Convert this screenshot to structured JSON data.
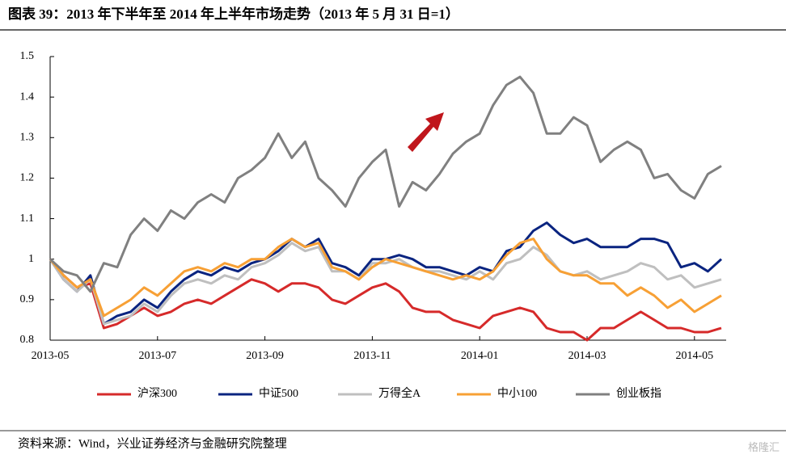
{
  "title": "图表 39：2013 年下半年至 2014 年上半年市场走势（2013 年 5 月 31 日=1）",
  "source": "资料来源：Wind，兴业证券经济与金融研究院整理",
  "watermark": "格隆汇",
  "chart_data": {
    "type": "line",
    "categories": [
      "2013-05",
      null,
      null,
      null,
      null,
      null,
      null,
      null,
      "2013-07",
      null,
      null,
      null,
      null,
      null,
      null,
      null,
      "2013-09",
      null,
      null,
      null,
      null,
      null,
      null,
      null,
      "2013-11",
      null,
      null,
      null,
      null,
      null,
      null,
      null,
      "2014-01",
      null,
      null,
      null,
      null,
      null,
      null,
      null,
      "2014-03",
      null,
      null,
      null,
      null,
      null,
      null,
      null,
      "2014-05",
      null,
      null
    ],
    "ylim": [
      0.8,
      1.5
    ],
    "yticks": [
      0.8,
      0.9,
      1,
      1.1,
      1.2,
      1.3,
      1.4,
      1.5
    ],
    "grid": false,
    "legend": "bottom",
    "series": [
      {
        "name": "沪深300",
        "color": "#d62a2a",
        "values": [
          1.0,
          0.96,
          0.93,
          0.94,
          0.83,
          0.84,
          0.86,
          0.88,
          0.86,
          0.87,
          0.89,
          0.9,
          0.89,
          0.91,
          0.93,
          0.95,
          0.94,
          0.92,
          0.94,
          0.94,
          0.93,
          0.9,
          0.89,
          0.91,
          0.93,
          0.94,
          0.92,
          0.88,
          0.87,
          0.87,
          0.85,
          0.84,
          0.83,
          0.86,
          0.87,
          0.88,
          0.87,
          0.83,
          0.82,
          0.82,
          0.8,
          0.83,
          0.83,
          0.85,
          0.87,
          0.85,
          0.83,
          0.83,
          0.82,
          0.82,
          0.83
        ]
      },
      {
        "name": "中证500",
        "color": "#0a2480",
        "values": [
          1.0,
          0.95,
          0.92,
          0.96,
          0.84,
          0.86,
          0.87,
          0.9,
          0.88,
          0.92,
          0.95,
          0.97,
          0.96,
          0.98,
          0.97,
          0.99,
          1.0,
          1.02,
          1.05,
          1.03,
          1.05,
          0.99,
          0.98,
          0.96,
          1.0,
          1.0,
          1.01,
          1.0,
          0.98,
          0.98,
          0.97,
          0.96,
          0.98,
          0.97,
          1.02,
          1.03,
          1.07,
          1.09,
          1.06,
          1.04,
          1.05,
          1.03,
          1.03,
          1.03,
          1.05,
          1.05,
          1.04,
          0.98,
          0.99,
          0.97,
          1.0
        ]
      },
      {
        "name": "万得全A",
        "color": "#bfbfbf",
        "values": [
          1.0,
          0.95,
          0.92,
          0.95,
          0.84,
          0.85,
          0.86,
          0.89,
          0.87,
          0.91,
          0.94,
          0.95,
          0.94,
          0.96,
          0.95,
          0.98,
          0.99,
          1.01,
          1.04,
          1.02,
          1.03,
          0.97,
          0.97,
          0.95,
          0.99,
          0.99,
          1.0,
          0.98,
          0.97,
          0.97,
          0.96,
          0.95,
          0.97,
          0.95,
          0.99,
          1.0,
          1.03,
          1.01,
          0.97,
          0.96,
          0.97,
          0.95,
          0.96,
          0.97,
          0.99,
          0.98,
          0.95,
          0.96,
          0.93,
          0.94,
          0.95
        ]
      },
      {
        "name": "中小100",
        "color": "#f7a035",
        "values": [
          1.0,
          0.96,
          0.93,
          0.95,
          0.86,
          0.88,
          0.9,
          0.93,
          0.91,
          0.94,
          0.97,
          0.98,
          0.97,
          0.99,
          0.98,
          1.0,
          1.0,
          1.03,
          1.05,
          1.03,
          1.04,
          0.98,
          0.97,
          0.95,
          0.98,
          1.0,
          0.99,
          0.98,
          0.97,
          0.96,
          0.95,
          0.96,
          0.95,
          0.97,
          1.01,
          1.04,
          1.05,
          1.0,
          0.97,
          0.96,
          0.96,
          0.94,
          0.94,
          0.91,
          0.93,
          0.91,
          0.88,
          0.9,
          0.87,
          0.89,
          0.91
        ]
      },
      {
        "name": "创业板指",
        "color": "#808080",
        "values": [
          1.0,
          0.97,
          0.96,
          0.92,
          0.99,
          0.98,
          1.06,
          1.1,
          1.07,
          1.12,
          1.1,
          1.14,
          1.16,
          1.14,
          1.2,
          1.22,
          1.25,
          1.31,
          1.25,
          1.29,
          1.2,
          1.17,
          1.13,
          1.2,
          1.24,
          1.27,
          1.13,
          1.19,
          1.17,
          1.21,
          1.26,
          1.29,
          1.31,
          1.38,
          1.43,
          1.45,
          1.41,
          1.31,
          1.31,
          1.35,
          1.33,
          1.24,
          1.27,
          1.29,
          1.27,
          1.2,
          1.21,
          1.17,
          1.15,
          1.21,
          1.23
        ]
      }
    ]
  }
}
